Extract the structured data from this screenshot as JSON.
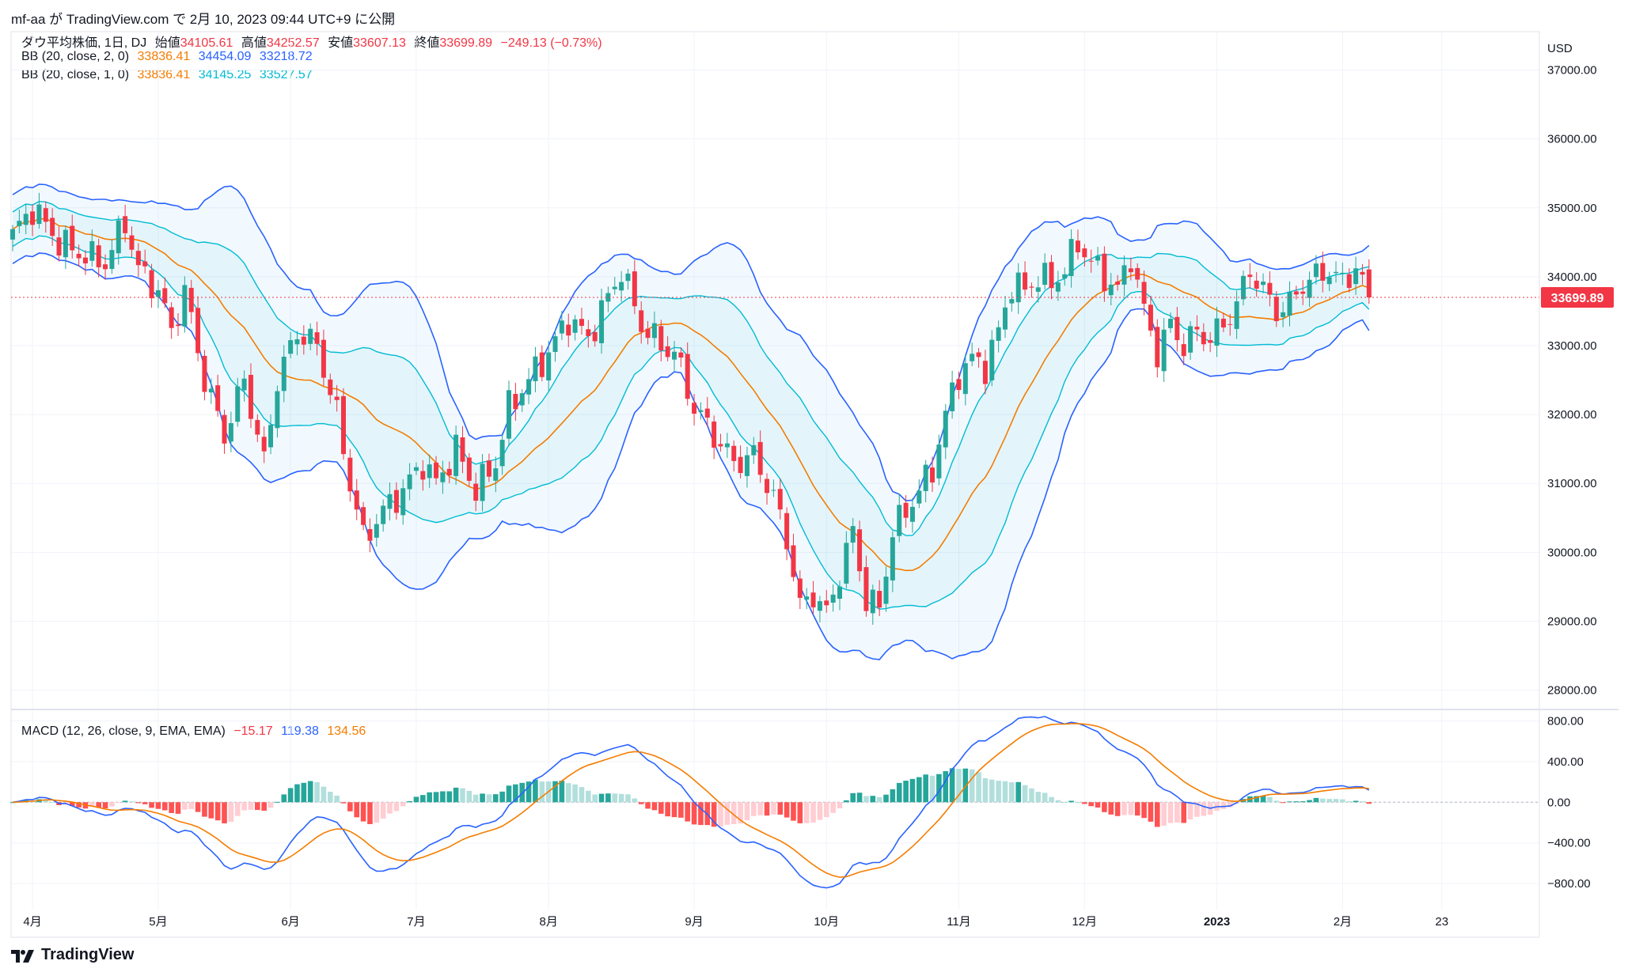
{
  "header": {
    "publish_line": "mf-aa が TradingView.com で 2月 10, 2023 09:44 UTC+9 に公開"
  },
  "legend": {
    "symbol": "ダウ平均株価, 1日, DJ",
    "open_label": "始値",
    "open": "34105.61",
    "high_label": "高値",
    "high": "34252.57",
    "low_label": "安値",
    "low": "33607.13",
    "close_label": "終値",
    "close": "33699.89",
    "change": "−249.13 (−0.73%)",
    "bb2_label": "BB (20, close, 2, 0)",
    "bb2_mid": "33836.41",
    "bb2_upper": "34454.09",
    "bb2_lower": "33218.72",
    "bb1_label": "BB (20, close, 1, 0)",
    "bb1_mid": "33836.41",
    "bb1_upper": "34145.25",
    "bb1_lower": "33527.57",
    "macd_label": "MACD (12, 26, close, 9, EMA, EMA)",
    "macd_hist": "−15.17",
    "macd_line": "119.38",
    "macd_signal": "134.56"
  },
  "axis": {
    "currency": "USD",
    "last_price_tag": "33699.89"
  },
  "footer": {
    "brand": "TradingView"
  },
  "colors": {
    "up": "#26a69a",
    "down": "#f23645",
    "basis": "#f57c00",
    "bb2": "#2962ff",
    "bb1": "#00bcd4",
    "macd": "#2962ff",
    "signal": "#f57c00",
    "hist_up_strong": "#26a69a",
    "hist_up_weak": "#b2dfdb",
    "hist_down_strong": "#ff5252",
    "hist_down_weak": "#ffcdd2"
  },
  "chart_data": {
    "type": "candlestick",
    "price_axis": {
      "ticks": [
        "28000.00",
        "29000.00",
        "30000.00",
        "31000.00",
        "32000.00",
        "33000.00",
        "34000.00",
        "35000.00",
        "36000.00",
        "37000.00"
      ],
      "ylim": [
        27800,
        37500
      ]
    },
    "macd_axis": {
      "ticks": [
        "−800.00",
        "−400.00",
        "0.00",
        "400.00",
        "800.00"
      ],
      "ylim": [
        -900,
        850
      ]
    },
    "x_labels": [
      "4月",
      "5月",
      "6月",
      "7月",
      "8月",
      "9月",
      "10月",
      "11月",
      "12月",
      "2023",
      "2月",
      "23"
    ],
    "x_label_index": [
      3,
      22,
      42,
      61,
      81,
      103,
      123,
      143,
      162,
      182,
      201,
      216
    ],
    "close_anchors": [
      [
        0,
        34600
      ],
      [
        3,
        35000
      ],
      [
        7,
        34500
      ],
      [
        11,
        34300
      ],
      [
        14,
        34200
      ],
      [
        17,
        34800
      ],
      [
        19,
        34100
      ],
      [
        22,
        33800
      ],
      [
        24,
        33200
      ],
      [
        26,
        33800
      ],
      [
        29,
        32500
      ],
      [
        32,
        31700
      ],
      [
        35,
        32500
      ],
      [
        38,
        31300
      ],
      [
        40,
        32500
      ],
      [
        43,
        33200
      ],
      [
        46,
        33000
      ],
      [
        49,
        32000
      ],
      [
        51,
        31000
      ],
      [
        53,
        30200
      ],
      [
        56,
        30600
      ],
      [
        59,
        30900
      ],
      [
        62,
        31300
      ],
      [
        64,
        31000
      ],
      [
        67,
        31500
      ],
      [
        70,
        30900
      ],
      [
        73,
        31300
      ],
      [
        75,
        32100
      ],
      [
        78,
        32500
      ],
      [
        81,
        32900
      ],
      [
        84,
        33400
      ],
      [
        87,
        33100
      ],
      [
        89,
        33500
      ],
      [
        92,
        34100
      ],
      [
        95,
        33300
      ],
      [
        98,
        33000
      ],
      [
        100,
        32900
      ],
      [
        103,
        32100
      ],
      [
        106,
        31700
      ],
      [
        109,
        31300
      ],
      [
        112,
        31400
      ],
      [
        115,
        30800
      ],
      [
        117,
        30200
      ],
      [
        119,
        29200
      ],
      [
        121,
        29400
      ],
      [
        123,
        29100
      ],
      [
        125,
        29700
      ],
      [
        127,
        30300
      ],
      [
        129,
        29300
      ],
      [
        131,
        29200
      ],
      [
        133,
        30300
      ],
      [
        135,
        30600
      ],
      [
        137,
        30900
      ],
      [
        139,
        31200
      ],
      [
        141,
        32000
      ],
      [
        143,
        32600
      ],
      [
        145,
        32800
      ],
      [
        147,
        32700
      ],
      [
        149,
        33200
      ],
      [
        151,
        33900
      ],
      [
        153,
        33800
      ],
      [
        155,
        34000
      ],
      [
        157,
        33900
      ],
      [
        159,
        34100
      ],
      [
        161,
        34500
      ],
      [
        163,
        34200
      ],
      [
        165,
        34000
      ],
      [
        167,
        33800
      ],
      [
        169,
        34300
      ],
      [
        171,
        33500
      ],
      [
        173,
        32900
      ],
      [
        175,
        33300
      ],
      [
        177,
        33000
      ],
      [
        179,
        33200
      ],
      [
        181,
        33100
      ],
      [
        183,
        33300
      ],
      [
        185,
        33600
      ],
      [
        187,
        34100
      ],
      [
        189,
        33800
      ],
      [
        191,
        33500
      ],
      [
        193,
        33600
      ],
      [
        195,
        33900
      ],
      [
        197,
        34000
      ],
      [
        199,
        34100
      ],
      [
        201,
        33900
      ],
      [
        203,
        34150
      ],
      [
        205,
        33700
      ]
    ],
    "last_close": 33699.89,
    "bb_last": {
      "mid": 33836.41,
      "upper2": 34454.09,
      "lower2": 33218.72,
      "upper1": 34145.25,
      "lower1": 33527.57
    },
    "macd_last": {
      "histogram": -15.17,
      "macd": 119.38,
      "signal": 134.56
    }
  }
}
